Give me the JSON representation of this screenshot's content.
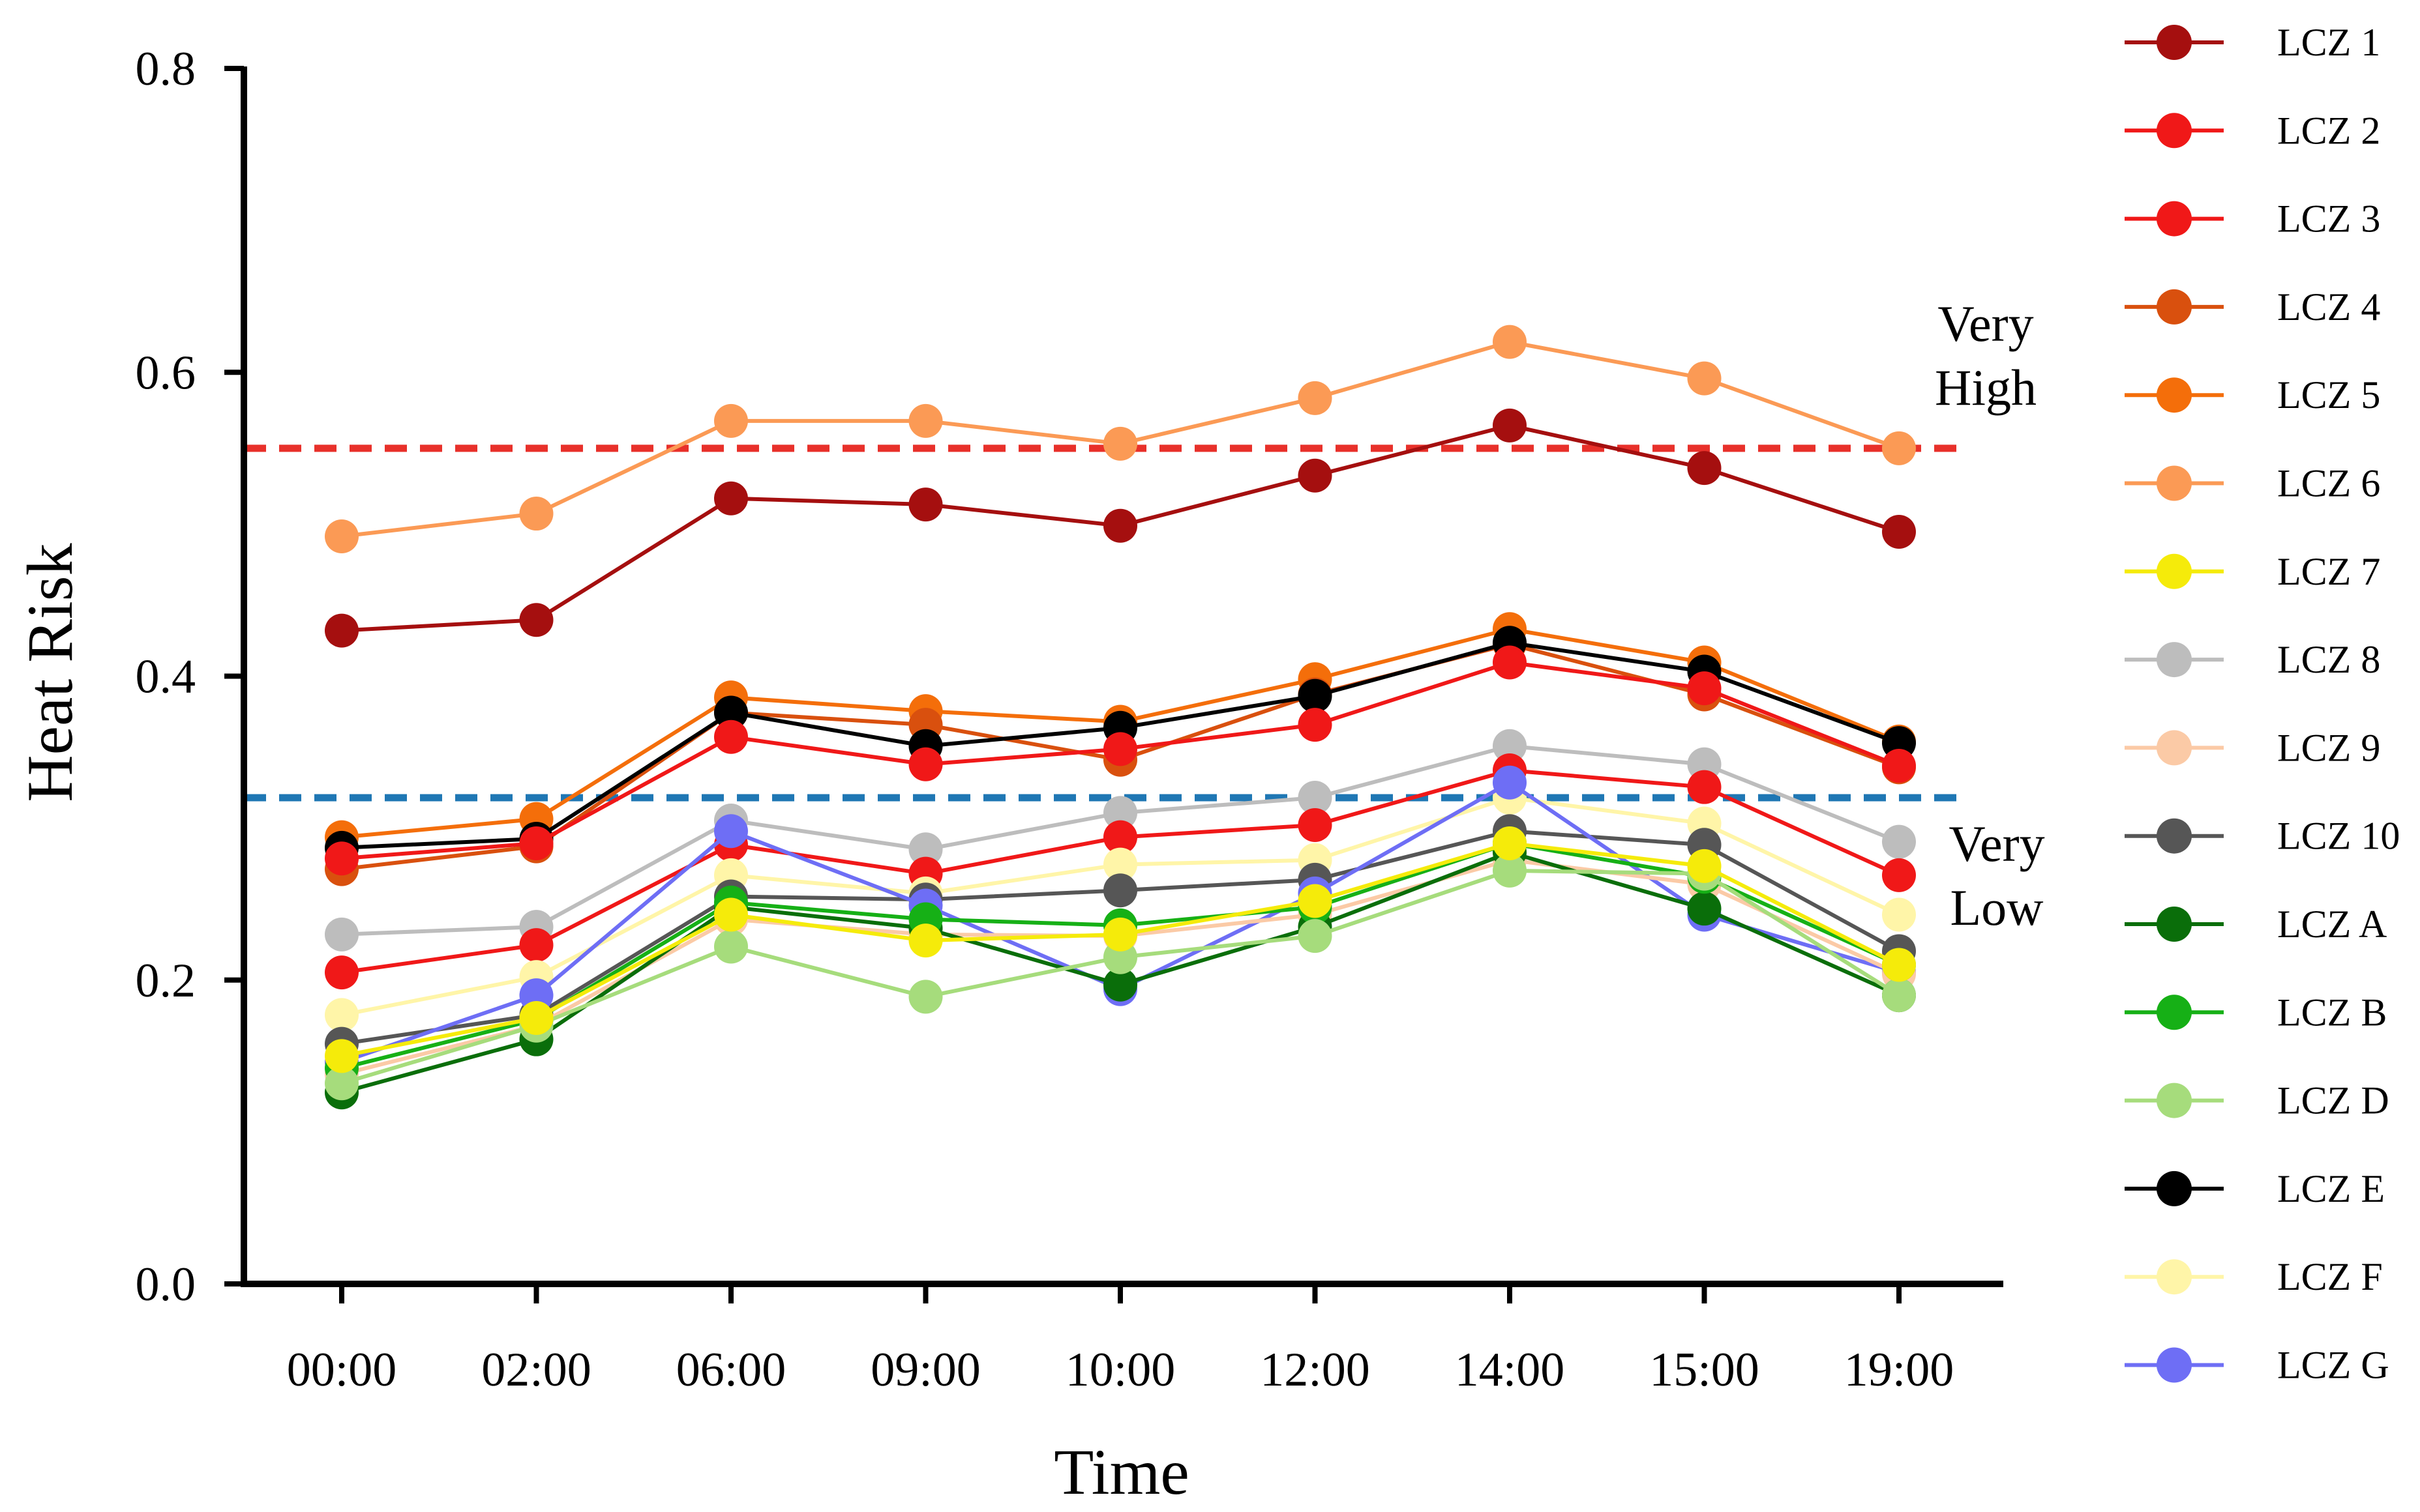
{
  "chart_data": {
    "type": "line",
    "title": "",
    "xlabel": "Time",
    "ylabel": "Heat Risk",
    "ylim": [
      0,
      0.8
    ],
    "yticks": [
      "0.0",
      "0.2",
      "0.4",
      "0.6",
      "0.8"
    ],
    "categories": [
      "00:00",
      "02:00",
      "06:00",
      "09:00",
      "10:00",
      "12:00",
      "14:00",
      "15:00",
      "19:00"
    ],
    "thresholds": [
      {
        "name": "very-high",
        "value": 0.55,
        "color": "#e8302a",
        "label_lines": [
          "Very",
          "High"
        ]
      },
      {
        "name": "very-low",
        "value": 0.32,
        "color": "#1f77b4",
        "label_lines": [
          "Very",
          "Low"
        ]
      }
    ],
    "legend_position": "right",
    "series": [
      {
        "name": "LCZ 6",
        "color": "#fb9a55",
        "values": [
          0.492,
          0.507,
          0.568,
          0.568,
          0.553,
          0.583,
          0.62,
          0.596,
          0.55
        ]
      },
      {
        "name": "LCZ 1",
        "color": "#a50f0f",
        "values": [
          0.43,
          0.437,
          0.517,
          0.513,
          0.499,
          0.532,
          0.565,
          0.537,
          0.495
        ]
      },
      {
        "name": "LCZ 5",
        "color": "#f46e0a",
        "values": [
          0.294,
          0.306,
          0.386,
          0.377,
          0.37,
          0.398,
          0.431,
          0.409,
          0.357
        ]
      },
      {
        "name": "LCZ 4",
        "color": "#d9500e",
        "values": [
          0.273,
          0.288,
          0.376,
          0.368,
          0.345,
          0.388,
          0.421,
          0.388,
          0.34
        ]
      },
      {
        "name": "LCZ E",
        "color": "#000000",
        "values": [
          0.287,
          0.293,
          0.376,
          0.354,
          0.366,
          0.387,
          0.422,
          0.403,
          0.356
        ]
      },
      {
        "name": "LCZ 2",
        "color": "#f01818",
        "values": [
          0.28,
          0.29,
          0.36,
          0.342,
          0.352,
          0.368,
          0.409,
          0.392,
          0.341
        ]
      },
      {
        "name": "LCZ 8",
        "color": "#bdbdbd",
        "values": [
          0.23,
          0.235,
          0.305,
          0.286,
          0.31,
          0.32,
          0.354,
          0.342,
          0.291
        ]
      },
      {
        "name": "LCZ 3",
        "color": "#f01818",
        "values": [
          0.205,
          0.223,
          0.289,
          0.27,
          0.294,
          0.302,
          0.338,
          0.327,
          0.269
        ]
      },
      {
        "name": "LCZ F",
        "color": "#fff5a8",
        "values": [
          0.177,
          0.202,
          0.269,
          0.257,
          0.276,
          0.279,
          0.32,
          0.303,
          0.243
        ]
      },
      {
        "name": "LCZ 10",
        "color": "#565656",
        "values": [
          0.158,
          0.177,
          0.255,
          0.253,
          0.259,
          0.266,
          0.298,
          0.289,
          0.219
        ]
      },
      {
        "name": "LCZ G",
        "color": "#6e6ef5",
        "values": [
          0.146,
          0.19,
          0.298,
          0.249,
          0.194,
          0.257,
          0.33,
          0.243,
          0.205
        ]
      },
      {
        "name": "LCZ 9",
        "color": "#fbcaa6",
        "values": [
          0.138,
          0.17,
          0.24,
          0.23,
          0.229,
          0.243,
          0.279,
          0.263,
          0.204
        ]
      },
      {
        "name": "LCZ A",
        "color": "#0a6e0a",
        "values": [
          0.126,
          0.161,
          0.248,
          0.234,
          0.197,
          0.235,
          0.284,
          0.247,
          0.19
        ]
      },
      {
        "name": "LCZ B",
        "color": "#16b016",
        "values": [
          0.142,
          0.174,
          0.251,
          0.24,
          0.236,
          0.248,
          0.29,
          0.268,
          0.21
        ]
      },
      {
        "name": "LCZ D",
        "color": "#a6dc7c",
        "values": [
          0.132,
          0.17,
          0.222,
          0.189,
          0.215,
          0.229,
          0.272,
          0.27,
          0.19
        ]
      },
      {
        "name": "LCZ 7",
        "color": "#f5eb0a",
        "values": [
          0.15,
          0.175,
          0.243,
          0.226,
          0.23,
          0.252,
          0.29,
          0.275,
          0.21
        ]
      }
    ],
    "legend_order": [
      "LCZ 1",
      "LCZ 2",
      "LCZ 3",
      "LCZ 4",
      "LCZ 5",
      "LCZ 6",
      "LCZ 7",
      "LCZ 8",
      "LCZ 9",
      "LCZ 10",
      "LCZ A",
      "LCZ B",
      "LCZ D",
      "LCZ E",
      "LCZ F",
      "LCZ G"
    ]
  }
}
